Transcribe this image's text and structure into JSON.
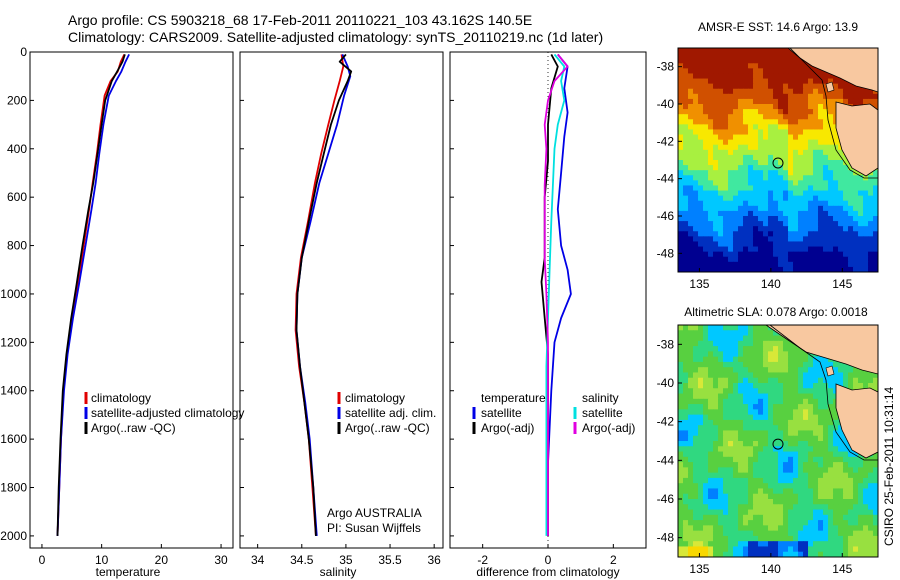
{
  "title": {
    "line1": "Argo profile: CS 5903218_68 17-Feb-2011 20110221_103 43.162S 140.5E",
    "line2": "Climatology: CARS2009. Satellite-adjusted climatology: synTS_20110219.nc (1d later)"
  },
  "colors": {
    "climatology": "#e00000",
    "satellite": "#0000e6",
    "argo": "#000000",
    "satellite_sal": "#00e0e0",
    "argo_sal": "#e000e0"
  },
  "chart_data": [
    {
      "type": "line",
      "name": "temperature-profile",
      "xlabel": "temperature",
      "ylabel": "",
      "xlim": [
        -2,
        32
      ],
      "ylim": [
        2050,
        0
      ],
      "xticks": [
        "0",
        "10",
        "20",
        "30"
      ],
      "yticks": [
        "0",
        "200",
        "400",
        "600",
        "800",
        "1000",
        "1200",
        "1400",
        "1600",
        "1800",
        "2000"
      ],
      "legend": [
        "climatology",
        "satellite-adjusted climatology",
        "Argo(..raw -QC)"
      ],
      "legend_placement": "center",
      "series": [
        {
          "name": "climatology",
          "color": "#e00000",
          "points": [
            [
              13.8,
              10
            ],
            [
              13.2,
              40
            ],
            [
              12.7,
              80
            ],
            [
              11.5,
              120
            ],
            [
              10.5,
              180
            ],
            [
              9.8,
              300
            ],
            [
              9.2,
              420
            ],
            [
              8.5,
              540
            ],
            [
              7.9,
              650
            ],
            [
              7.0,
              800
            ],
            [
              6.0,
              960
            ],
            [
              5.0,
              1100
            ],
            [
              4.2,
              1250
            ],
            [
              3.6,
              1400
            ],
            [
              3.2,
              1600
            ],
            [
              2.9,
              1800
            ],
            [
              2.6,
              2000
            ]
          ]
        },
        {
          "name": "satellite-adjusted climatology",
          "color": "#0000e6",
          "points": [
            [
              14.6,
              10
            ],
            [
              14.0,
              40
            ],
            [
              13.3,
              80
            ],
            [
              12.4,
              120
            ],
            [
              11.2,
              180
            ],
            [
              10.3,
              300
            ],
            [
              9.6,
              420
            ],
            [
              9.0,
              540
            ],
            [
              8.3,
              650
            ],
            [
              7.3,
              800
            ],
            [
              6.2,
              960
            ],
            [
              5.2,
              1100
            ],
            [
              4.3,
              1250
            ],
            [
              3.7,
              1400
            ],
            [
              3.2,
              1600
            ],
            [
              2.9,
              1800
            ],
            [
              2.6,
              2000
            ]
          ]
        },
        {
          "name": "Argo(..raw -QC)",
          "color": "#000000",
          "points": [
            [
              13.9,
              10
            ],
            [
              13.5,
              40
            ],
            [
              12.6,
              80
            ],
            [
              11.7,
              120
            ],
            [
              10.6,
              200
            ],
            [
              10.0,
              300
            ],
            [
              9.3,
              420
            ],
            [
              8.6,
              540
            ],
            [
              7.8,
              650
            ],
            [
              6.8,
              800
            ],
            [
              5.8,
              960
            ],
            [
              4.9,
              1100
            ],
            [
              4.1,
              1250
            ],
            [
              3.5,
              1400
            ],
            [
              3.1,
              1600
            ],
            [
              2.8,
              1800
            ],
            [
              2.6,
              2000
            ]
          ]
        }
      ]
    },
    {
      "type": "line",
      "name": "salinity-profile",
      "xlabel": "salinity",
      "ylabel": "",
      "xlim": [
        33.8,
        36.1
      ],
      "ylim": [
        2050,
        0
      ],
      "xticks": [
        "34",
        "34.5",
        "35",
        "35.5",
        "36"
      ],
      "legend": [
        "climatology",
        "satellite adj. clim.",
        "Argo(..raw -QC)"
      ],
      "legend_placement": "center",
      "annotation": [
        "Argo AUSTRALIA",
        "PI: Susan Wijffels"
      ],
      "series": [
        {
          "name": "climatology",
          "color": "#e00000",
          "points": [
            [
              34.95,
              10
            ],
            [
              34.97,
              60
            ],
            [
              34.93,
              120
            ],
            [
              34.87,
              200
            ],
            [
              34.8,
              300
            ],
            [
              34.72,
              420
            ],
            [
              34.65,
              540
            ],
            [
              34.57,
              700
            ],
            [
              34.49,
              850
            ],
            [
              34.44,
              1000
            ],
            [
              34.43,
              1150
            ],
            [
              34.47,
              1300
            ],
            [
              34.53,
              1450
            ],
            [
              34.58,
              1600
            ],
            [
              34.62,
              1800
            ],
            [
              34.66,
              2000
            ]
          ]
        },
        {
          "name": "satellite adj. clim.",
          "color": "#0000e6",
          "points": [
            [
              34.96,
              10
            ],
            [
              35.02,
              60
            ],
            [
              35.05,
              100
            ],
            [
              34.98,
              180
            ],
            [
              34.9,
              300
            ],
            [
              34.8,
              420
            ],
            [
              34.7,
              540
            ],
            [
              34.6,
              700
            ],
            [
              34.5,
              850
            ],
            [
              34.45,
              1000
            ],
            [
              34.44,
              1150
            ],
            [
              34.48,
              1300
            ],
            [
              34.54,
              1450
            ],
            [
              34.59,
              1600
            ],
            [
              34.63,
              1800
            ],
            [
              34.67,
              2000
            ]
          ]
        },
        {
          "name": "Argo(..raw -QC)",
          "color": "#000000",
          "points": [
            [
              35.0,
              10
            ],
            [
              34.93,
              40
            ],
            [
              35.06,
              80
            ],
            [
              35.02,
              120
            ],
            [
              34.92,
              200
            ],
            [
              34.83,
              300
            ],
            [
              34.75,
              420
            ],
            [
              34.67,
              540
            ],
            [
              34.58,
              700
            ],
            [
              34.5,
              850
            ],
            [
              34.45,
              1000
            ],
            [
              34.44,
              1150
            ],
            [
              34.48,
              1300
            ],
            [
              34.53,
              1450
            ],
            [
              34.58,
              1600
            ],
            [
              34.63,
              1800
            ],
            [
              34.66,
              2000
            ]
          ]
        }
      ]
    },
    {
      "type": "line",
      "name": "difference-from-climatology",
      "xlabel": "difference from climatology",
      "ylabel": "",
      "xlim": [
        -3,
        3
      ],
      "ylim": [
        2050,
        0
      ],
      "xticks": [
        "-2",
        "0",
        "2"
      ],
      "legend_groups": [
        {
          "header": "temperature",
          "items": [
            "satellite",
            "Argo(-adj)"
          ]
        },
        {
          "header": "salinity",
          "items": [
            "satellite",
            "Argo(-adj)"
          ]
        }
      ],
      "series": [
        {
          "name": "temperature satellite",
          "color": "#0000e6",
          "points": [
            [
              0.3,
              10
            ],
            [
              0.6,
              60
            ],
            [
              0.5,
              150
            ],
            [
              0.6,
              250
            ],
            [
              0.5,
              350
            ],
            [
              0.4,
              500
            ],
            [
              0.3,
              650
            ],
            [
              0.4,
              800
            ],
            [
              0.6,
              900
            ],
            [
              0.7,
              1000
            ],
            [
              0.4,
              1100
            ],
            [
              0.2,
              1200
            ],
            [
              0.1,
              1400
            ],
            [
              0.0,
              1700
            ],
            [
              0.0,
              2000
            ]
          ]
        },
        {
          "name": "temperature Argo(-adj)",
          "color": "#000000",
          "points": [
            [
              0.1,
              10
            ],
            [
              0.3,
              60
            ],
            [
              0.1,
              150
            ],
            [
              0.0,
              300
            ],
            [
              0.0,
              450
            ],
            [
              -0.1,
              600
            ],
            [
              -0.1,
              750
            ],
            [
              -0.1,
              850
            ],
            [
              -0.2,
              950
            ],
            [
              -0.1,
              1100
            ],
            [
              0.0,
              1250
            ],
            [
              0.0,
              1500
            ],
            [
              0.0,
              1800
            ],
            [
              0.0,
              2000
            ]
          ]
        },
        {
          "name": "salinity satellite",
          "color": "#00e0e0",
          "points": [
            [
              0.2,
              10
            ],
            [
              0.5,
              60
            ],
            [
              0.4,
              120
            ],
            [
              0.5,
              200
            ],
            [
              0.3,
              300
            ],
            [
              0.2,
              400
            ],
            [
              0.15,
              550
            ],
            [
              0.1,
              700
            ],
            [
              0.05,
              900
            ],
            [
              0.0,
              1100
            ],
            [
              -0.05,
              1300
            ],
            [
              -0.05,
              1500
            ],
            [
              -0.05,
              1800
            ],
            [
              -0.05,
              2000
            ]
          ]
        },
        {
          "name": "salinity Argo(-adj)",
          "color": "#e000e0",
          "points": [
            [
              0.3,
              10
            ],
            [
              0.6,
              60
            ],
            [
              0.2,
              120
            ],
            [
              0.0,
              200
            ],
            [
              -0.1,
              300
            ],
            [
              -0.05,
              400
            ],
            [
              -0.1,
              550
            ],
            [
              -0.1,
              700
            ],
            [
              -0.1,
              850
            ],
            [
              -0.05,
              1000
            ],
            [
              0.0,
              1200
            ],
            [
              0.0,
              1400
            ],
            [
              0.0,
              1600
            ],
            [
              0.0,
              1800
            ],
            [
              0.0,
              2000
            ]
          ]
        }
      ]
    },
    {
      "type": "heatmap",
      "name": "sst-map",
      "title": "AMSR-E SST: 14.6 Argo: 13.9",
      "xlim": [
        133.5,
        147.5
      ],
      "ylim": [
        -49,
        -37
      ],
      "xticks": [
        "135",
        "140",
        "145"
      ],
      "yticks": [
        "-38",
        "-40",
        "-42",
        "-44",
        "-46",
        "-48"
      ],
      "marker": {
        "lon": 140.5,
        "lat": -43.16
      },
      "colormap": [
        "#000090",
        "#0030c0",
        "#0080ff",
        "#00c8ff",
        "#40e8a0",
        "#a8f040",
        "#f8e800",
        "#f09000",
        "#d05000",
        "#a01800"
      ]
    },
    {
      "type": "heatmap",
      "name": "sla-map",
      "title": "Altimetric SLA: 0.078 Argo: 0.0018",
      "xlim": [
        133.5,
        147.5
      ],
      "ylim": [
        -49,
        -37
      ],
      "xticks": [
        "135",
        "140",
        "145"
      ],
      "yticks": [
        "-38",
        "-40",
        "-42",
        "-44",
        "-46",
        "-48"
      ],
      "marker": {
        "lon": 140.5,
        "lat": -43.16
      },
      "colormap": [
        "#0030c0",
        "#0080ff",
        "#00c8ff",
        "#30d880",
        "#58d040",
        "#98e040",
        "#d8e838",
        "#f8d800"
      ]
    }
  ],
  "stamp": "CSIRO 25-Feb-2011 10:31:14"
}
